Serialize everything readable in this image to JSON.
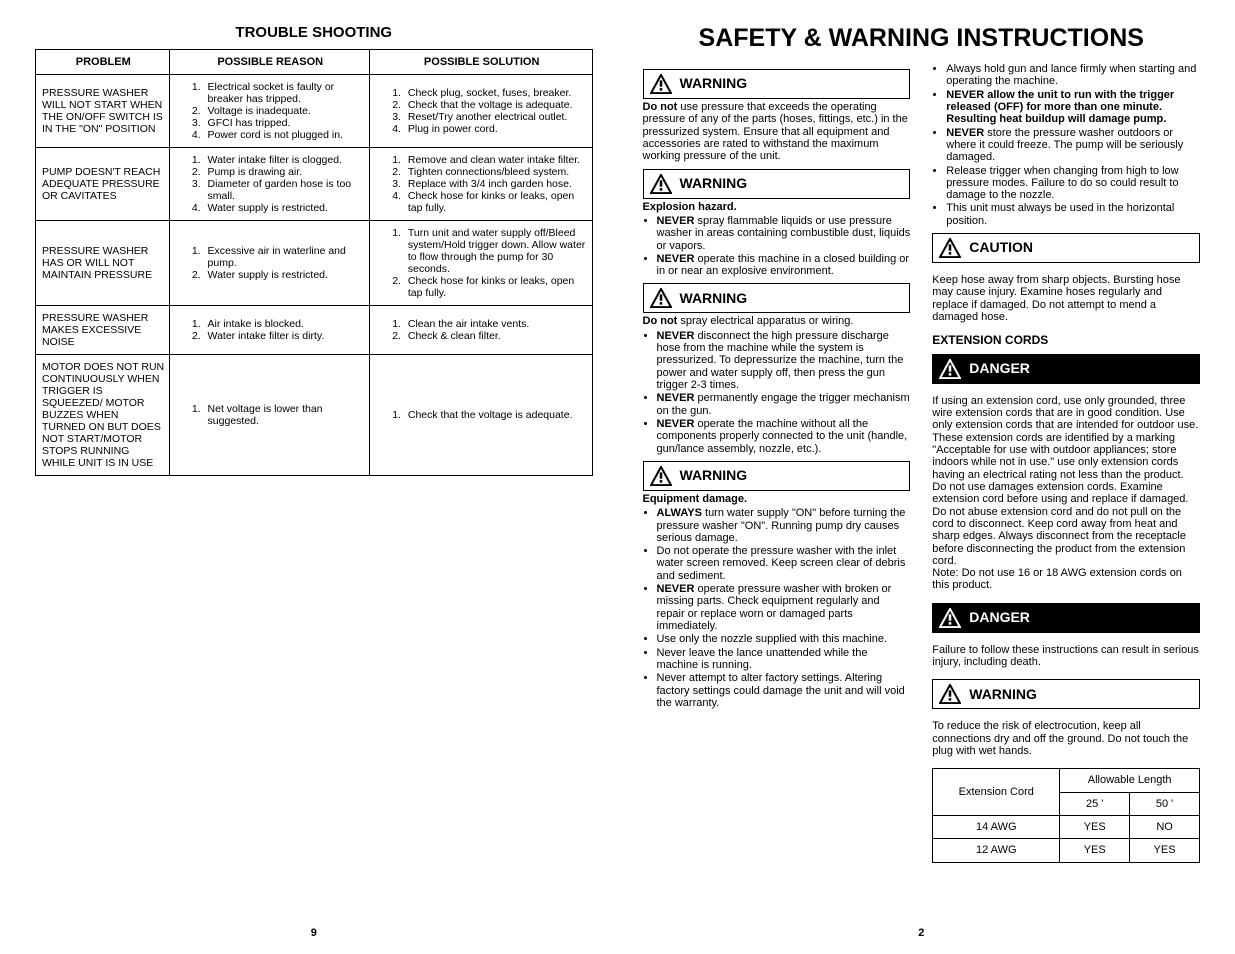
{
  "left": {
    "title": "TROUBLE SHOOTING",
    "headers": [
      "PROBLEM",
      "POSSIBLE REASON",
      "POSSIBLE SOLUTION"
    ],
    "rows": [
      {
        "problem": "PRESSURE WASHER WILL NOT START WHEN THE ON/OFF SWITCH IS IN THE \"ON\" POSITION",
        "reason": [
          "Electrical socket is faulty or breaker has tripped.",
          "Voltage is inadequate.",
          "GFCI has tripped.",
          "Power cord is not plugged in."
        ],
        "solution": [
          "Check plug, socket, fuses, breaker.",
          "Check that the voltage is adequate.",
          "Reset/Try another electrical outlet.",
          "Plug in power cord."
        ]
      },
      {
        "problem": "PUMP DOESN'T REACH ADEQUATE PRESSURE OR CAVITATES",
        "reason": [
          "Water intake filter is clogged.",
          "Pump is drawing air.",
          "Diameter of garden hose is too small.",
          "Water supply is restricted."
        ],
        "solution": [
          "Remove and clean water intake filter.",
          "Tighten connections/bleed system.",
          "Replace with 3/4 inch garden hose.",
          "Check hose for kinks or leaks, open tap fully."
        ]
      },
      {
        "problem": "PRESSURE WASHER HAS OR WILL NOT MAINTAIN PRESSURE",
        "reason": [
          "Excessive air in waterline and pump.",
          "Water supply is restricted."
        ],
        "solution": [
          "Turn unit and water supply off/Bleed system/Hold trigger down. Allow water to flow through the pump for 30 seconds.",
          "Check hose for kinks or leaks, open tap fully."
        ]
      },
      {
        "problem": "PRESSURE WASHER MAKES EXCESSIVE NOISE",
        "reason": [
          "Air intake is blocked.",
          "Water intake filter is dirty."
        ],
        "solution": [
          "Clean the air intake vents.",
          "Check & clean filter."
        ]
      },
      {
        "problem": "MOTOR DOES NOT RUN CONTINUOUSLY WHEN TRIGGER IS SQUEEZED/ MOTOR BUZZES WHEN TURNED ON BUT DOES NOT START/MOTOR STOPS RUNNING WHILE UNIT IS IN USE",
        "reason": [
          "Net voltage is lower than suggested."
        ],
        "solution": [
          "Check that the voltage is adequate."
        ]
      }
    ],
    "pageNumber": "9"
  },
  "right": {
    "title": "SAFETY & WARNING INSTRUCTIONS",
    "labels": {
      "warning": "WARNING",
      "caution": "CAUTION",
      "danger": "DANGER"
    },
    "col1_blocks": [
      {
        "type": "warning",
        "body": {
          "intro": "<span class='bold'>Do not</span> use pressure that exceeds the operating pressure of any of the parts (hoses, fittings, etc.) in the pressurized system. Ensure that all equipment and accessories are rated to withstand the maximum working pressure of the unit."
        }
      },
      {
        "type": "warning",
        "body": {
          "lead": "Explosion hazard.",
          "bullets": [
            "<span class='bold'>NEVER</span> spray flammable liquids or use pressure washer in areas containing combustible dust, liquids or vapors.",
            "<span class='bold'>NEVER</span> operate this machine in a closed building or in or near an explosive environment."
          ]
        }
      },
      {
        "type": "warning",
        "body": {
          "intro": "<span class='bold'>Do not</span> spray electrical apparatus or wiring.",
          "bullets": [
            "<span class='bold'>NEVER</span> disconnect the high pressure discharge hose from the machine while the system is pressurized. To depressurize the machine, turn the power and water supply off, then press the gun trigger 2-3 times.",
            "<span class='bold'>NEVER</span> permanently engage the trigger mechanism on the gun.",
            "<span class='bold'>NEVER</span> operate the machine without all the components properly connected to the unit (handle, gun/lance assembly, nozzle, etc.)."
          ]
        }
      },
      {
        "type": "warning",
        "body": {
          "lead": "Equipment damage.",
          "bullets": [
            "<span class='bold'>ALWAYS</span> turn water supply \"ON\" before turning the pressure washer \"ON\". Running pump dry causes serious damage.",
            "Do not operate the pressure washer with the inlet water screen removed. Keep screen clear of debris and sediment.",
            "<span class='bold'>NEVER</span> operate pressure washer with broken or missing parts. Check equipment regularly and repair or replace worn or damaged parts immediately.",
            "Use only the nozzle supplied with this machine.",
            "Never leave the lance unattended while the machine is running.",
            "Never attempt to alter factory settings. Altering factory settings could damage the unit and will void the warranty."
          ]
        }
      }
    ],
    "col2_top_bullets": [
      "Always hold gun and lance firmly when starting and operating the machine.",
      "<span class='bold'>NEVER allow the unit to run with the trigger released (OFF) for more than one minute. Resulting heat buildup will damage pump.</span>",
      "<span class='bold'>NEVER</span> store the pressure washer outdoors or where it could freeze. The pump will be seriously damaged.",
      "Release trigger when changing from high to low pressure modes. Failure to do so could result to damage to the nozzle.",
      "This unit must always be used in the horizontal position."
    ],
    "caution_text": "Keep hose away from sharp objects. Bursting hose may cause injury. Examine hoses regularly and replace if damaged. Do not attempt to mend a damaged hose.",
    "ext_heading": "EXTENSION CORDS",
    "danger1_text": "If using an extension cord, use only grounded, three wire extension cords that are in good condition. Use only extension cords that are intended for outdoor use. These extension cords are identified by a marking \"Acceptable for use with outdoor appliances; store indoors while not in use.\" use only extension cords having an electrical rating not less than the product. Do not use damages extension cords. Examine extension cord before using and replace if damaged. Do not abuse extension cord and do not pull on the cord to disconnect. Keep cord away from heat and sharp edges. Always disconnect from the receptacle before disconnecting the product from the extension cord.\nNote: Do not use 16 or 18 AWG extension cords on this product.",
    "danger2_text": "Failure to follow these instructions can result in serious injury, including death.",
    "warning_bottom_text": "To reduce the risk of electrocution, keep all connections dry and off the ground. Do not touch the plug with wet hands.",
    "ext_table": {
      "h1": "Extension Cord",
      "h2": "Allowable Length",
      "c1": "25 '",
      "c2": "50 '",
      "r": [
        [
          "14 AWG",
          "YES",
          "NO"
        ],
        [
          "12 AWG",
          "YES",
          "YES"
        ]
      ]
    },
    "pageNumber": "2"
  }
}
